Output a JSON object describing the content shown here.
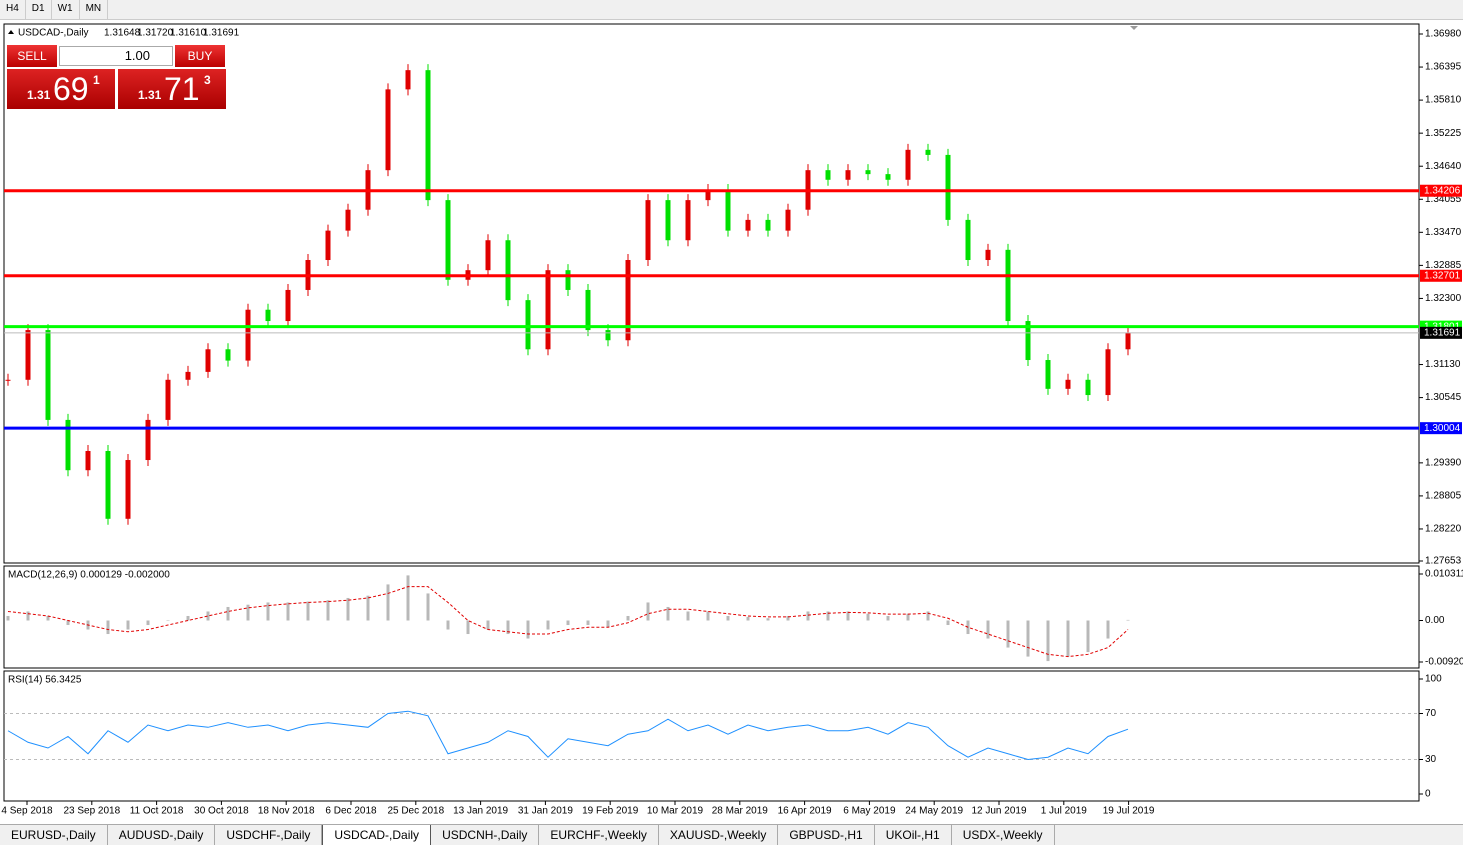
{
  "toolbar": [
    "H4",
    "D1",
    "W1",
    "MN"
  ],
  "header": {
    "symbol": "USDCAD-,Daily",
    "quotes": [
      "1.31648",
      "1.31720",
      "1.31610",
      "1.31691"
    ]
  },
  "trade_panel": {
    "sell": "SELL",
    "buy": "BUY",
    "volume": "1.00",
    "bid": {
      "big": "1.31",
      "main": "69",
      "small": "1"
    },
    "ask": {
      "big": "1.31",
      "main": "71",
      "small": "3"
    }
  },
  "chart_data": {
    "type": "candlestick",
    "closes": [
      1.3086,
      1.3174,
      1.3015,
      1.2926,
      1.296,
      1.284,
      1.2944,
      1.3015,
      1.3086,
      1.31,
      1.314,
      1.312,
      1.321,
      1.319,
      1.3245,
      1.3298,
      1.335,
      1.3387,
      1.3457,
      1.36,
      1.3634,
      1.3404,
      1.3263,
      1.328,
      1.3333,
      1.3227,
      1.314,
      1.328,
      1.3245,
      1.3174,
      1.3156,
      1.3298,
      1.3404,
      1.3333,
      1.3404,
      1.3422,
      1.335,
      1.3369,
      1.335,
      1.3387,
      1.3457,
      1.344,
      1.3457,
      1.345,
      1.344,
      1.3493,
      1.3484,
      1.3369,
      1.3298,
      1.3316,
      1.319,
      1.3121,
      1.307,
      1.3086,
      1.3059,
      1.314,
      1.31691
    ],
    "up_color": "#e00000",
    "down_color": "#00e000",
    "ylim": [
      1.27653,
      1.3698
    ],
    "yticks": [
      {
        "value": 1.3698,
        "label": "1.36980"
      },
      {
        "value": 1.36395,
        "label": "1.36395"
      },
      {
        "value": 1.3581,
        "label": "1.35810"
      },
      {
        "value": 1.35225,
        "label": "1.35225"
      },
      {
        "value": 1.3464,
        "label": "1.34640"
      },
      {
        "value": 1.34055,
        "label": "1.34055"
      },
      {
        "value": 1.3347,
        "label": "1.33470"
      },
      {
        "value": 1.32885,
        "label": "1.32885"
      },
      {
        "value": 1.323,
        "label": "1.32300"
      },
      {
        "value": 1.3113,
        "label": "1.31130"
      },
      {
        "value": 1.30545,
        "label": "1.30545"
      },
      {
        "value": 1.2939,
        "label": "1.29390"
      },
      {
        "value": 1.28805,
        "label": "1.28805"
      },
      {
        "value": 1.2822,
        "label": "1.28220"
      },
      {
        "value": 1.27653,
        "label": "1.27653"
      }
    ],
    "levels": [
      {
        "value": 1.34206,
        "color": "#ff0000"
      },
      {
        "value": 1.32701,
        "color": "#ff0000"
      },
      {
        "value": 1.31801,
        "color": "#00ff00"
      },
      {
        "value": 1.30004,
        "color": "#0000ff"
      }
    ],
    "current_price": 1.31691,
    "dates": [
      "4 Sep 2018",
      "23 Sep 2018",
      "11 Oct 2018",
      "30 Oct 2018",
      "18 Nov 2018",
      "6 Dec 2018",
      "25 Dec 2018",
      "13 Jan 2019",
      "31 Jan 2019",
      "19 Feb 2019",
      "10 Mar 2019",
      "28 Mar 2019",
      "16 Apr 2019",
      "6 May 2019",
      "24 May 2019",
      "12 Jun 2019",
      "1 Jul 2019",
      "19 Jul 2019"
    ]
  },
  "macd": {
    "label": "MACD(12,26,9) 0.000129 -0.002000",
    "histogram": [
      0.001,
      0.002,
      0.001,
      -0.001,
      -0.002,
      -0.003,
      -0.002,
      -0.001,
      0,
      0.001,
      0.002,
      0.003,
      0.0035,
      0.004,
      0.004,
      0.0042,
      0.0045,
      0.005,
      0.0055,
      0.008,
      0.01,
      0.006,
      -0.002,
      -0.003,
      -0.002,
      -0.003,
      -0.004,
      -0.002,
      -0.001,
      -0.001,
      -0.0015,
      0.001,
      0.004,
      0.003,
      0.002,
      0.002,
      0.001,
      0.0008,
      0.0005,
      0.001,
      0.002,
      0.002,
      0.002,
      0.0015,
      0.001,
      0.0015,
      0.002,
      -0.001,
      -0.003,
      -0.004,
      -0.006,
      -0.008,
      -0.009,
      -0.008,
      -0.007,
      -0.004,
      0.000129
    ],
    "signal": [
      0.002,
      0.0015,
      0.001,
      0,
      -0.001,
      -0.002,
      -0.0025,
      -0.002,
      -0.001,
      0,
      0.001,
      0.002,
      0.0028,
      0.0033,
      0.0037,
      0.004,
      0.0042,
      0.0045,
      0.005,
      0.006,
      0.0075,
      0.0075,
      0.004,
      0,
      -0.002,
      -0.0025,
      -0.003,
      -0.003,
      -0.002,
      -0.0015,
      -0.0015,
      -0.0005,
      0.0015,
      0.0025,
      0.0025,
      0.002,
      0.0015,
      0.001,
      0.0008,
      0.0008,
      0.0012,
      0.0016,
      0.0018,
      0.0017,
      0.0014,
      0.0014,
      0.0016,
      0.0005,
      -0.0015,
      -0.003,
      -0.0045,
      -0.006,
      -0.0075,
      -0.008,
      -0.0075,
      -0.006,
      -0.002
    ],
    "ylim": [
      -0.009203,
      0.010311
    ],
    "yticks": [
      {
        "value": 0.010311,
        "label": "0.010311"
      },
      {
        "value": 0,
        "label": "0.00"
      },
      {
        "value": -0.009203,
        "label": "-0.009203"
      }
    ]
  },
  "rsi": {
    "label": "RSI(14) 56.3425",
    "values": [
      55,
      45,
      40,
      50,
      35,
      55,
      45,
      60,
      55,
      60,
      58,
      62,
      58,
      60,
      55,
      60,
      62,
      60,
      58,
      70,
      72,
      68,
      35,
      40,
      45,
      55,
      50,
      32,
      48,
      45,
      42,
      52,
      55,
      65,
      55,
      60,
      52,
      60,
      55,
      58,
      60,
      55,
      55,
      58,
      52,
      62,
      58,
      42,
      32,
      40,
      35,
      30,
      32,
      40,
      35,
      50,
      56.3425
    ],
    "ylim": [
      0,
      100
    ],
    "yticks": [
      100,
      70,
      30,
      0
    ],
    "levels": [
      70,
      30
    ]
  },
  "tabs": [
    "EURUSD-,Daily",
    "AUDUSD-,Daily",
    "USDCHF-,Daily",
    "USDCAD-,Daily",
    "USDCNH-,Daily",
    "EURCHF-,Weekly",
    "XAUUSD-,Weekly",
    "GBPUSD-,H1",
    "UKOil-,H1",
    "USDX-,Weekly"
  ],
  "active_tab": 3
}
